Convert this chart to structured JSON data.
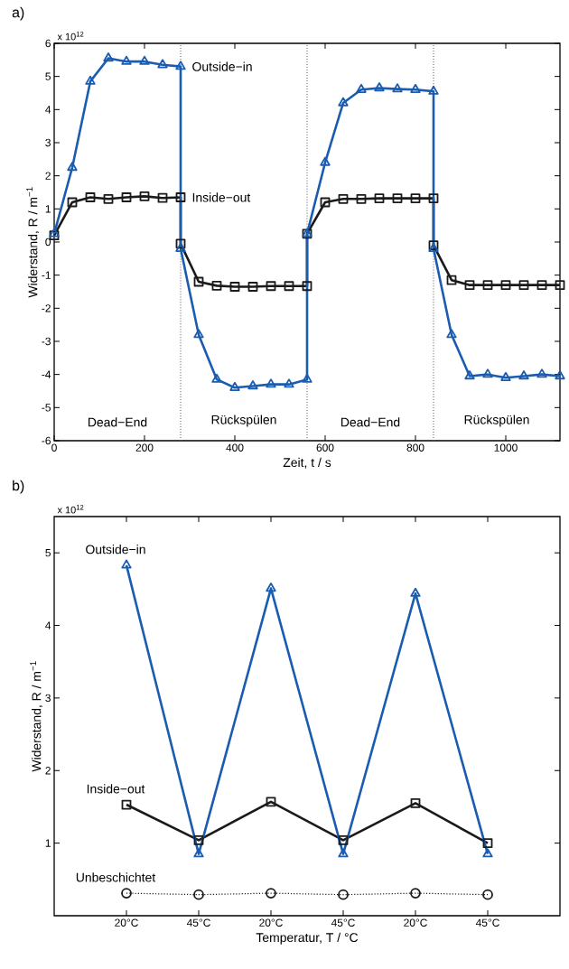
{
  "chart_data": [
    {
      "type": "line",
      "title": "a)",
      "xlabel": "Zeit, t / s",
      "ylabel": "Widerstand, R  / m$^{−1}$",
      "x": [
        0,
        40,
        80,
        120,
        160,
        200,
        240,
        280,
        280,
        320,
        360,
        400,
        440,
        480,
        520,
        560,
        560,
        600,
        640,
        680,
        720,
        760,
        800,
        840,
        840,
        880,
        920,
        960,
        1000,
        1040,
        1080,
        1120
      ],
      "series": [
        {
          "name": "Inside−out",
          "color": "#1a1a1a",
          "marker": "square",
          "line_style": "solid",
          "values": [
            0.2,
            1.2,
            1.35,
            1.3,
            1.35,
            1.38,
            1.33,
            1.35,
            -0.05,
            -1.2,
            -1.32,
            -1.35,
            -1.35,
            -1.33,
            -1.33,
            -1.33,
            0.25,
            1.2,
            1.3,
            1.3,
            1.32,
            1.32,
            1.32,
            1.32,
            -0.1,
            -1.15,
            -1.3,
            -1.3,
            -1.3,
            -1.3,
            -1.3,
            -1.3
          ]
        },
        {
          "name": "Outside−in",
          "color": "#1a5cb0",
          "marker": "triangle",
          "line_style": "solid",
          "values": [
            0.25,
            2.25,
            4.85,
            5.55,
            5.45,
            5.45,
            5.35,
            5.3,
            -0.2,
            -2.8,
            -4.15,
            -4.4,
            -4.35,
            -4.3,
            -4.3,
            -4.15,
            0.25,
            2.4,
            4.2,
            4.6,
            4.65,
            4.62,
            4.6,
            4.55,
            -0.2,
            -2.8,
            -4.05,
            -4.0,
            -4.1,
            -4.05,
            -4.0,
            -4.05
          ]
        }
      ],
      "xlim": [
        0,
        1120
      ],
      "ylim": [
        -6,
        6
      ],
      "xticks": [
        0,
        200,
        400,
        600,
        800,
        1000
      ],
      "yticks": [
        -6,
        -5,
        -4,
        -3,
        -2,
        -1,
        0,
        1,
        2,
        3,
        4,
        5,
        6
      ],
      "ref_lines": [
        {
          "axis": "x",
          "value": 280,
          "color": "#555555",
          "line_style": "dotted"
        },
        {
          "axis": "x",
          "value": 560,
          "color": "#555555",
          "line_style": "dotted"
        },
        {
          "axis": "x",
          "value": 840,
          "color": "#555555",
          "line_style": "dotted"
        }
      ],
      "annotations": [
        "x 10$^{12}$",
        "Dead−End",
        "Rückspülen",
        "Dead−End",
        "Rückspülen"
      ]
    },
    {
      "type": "line",
      "title": "b)",
      "xlabel": "Temperatur, T  / °C",
      "ylabel": "Widerstand, R  / m$^{−1}$",
      "categories": [
        "20°C",
        "45°C",
        "20°C",
        "45°C",
        "20°C",
        "45°C"
      ],
      "series": [
        {
          "name": "Inside−out",
          "color": "#1a1a1a",
          "marker": "square",
          "line_style": "solid",
          "values": [
            1.53,
            1.04,
            1.57,
            1.04,
            1.55,
            1.0
          ]
        },
        {
          "name": "Outside−in",
          "color": "#1a5cb0",
          "marker": "triangle",
          "line_style": "solid",
          "values": [
            4.83,
            0.85,
            4.51,
            0.85,
            4.44,
            0.85
          ]
        },
        {
          "name": "Unbeschichtet",
          "color": "#1a1a1a",
          "marker": "circle",
          "line_style": "dotted",
          "values": [
            0.31,
            0.29,
            0.31,
            0.29,
            0.31,
            0.29
          ]
        }
      ],
      "ylim": [
        0,
        5.5
      ],
      "yticks": [
        1,
        2,
        3,
        4,
        5
      ],
      "annotations": [
        "x 10$^{12}$"
      ]
    }
  ]
}
